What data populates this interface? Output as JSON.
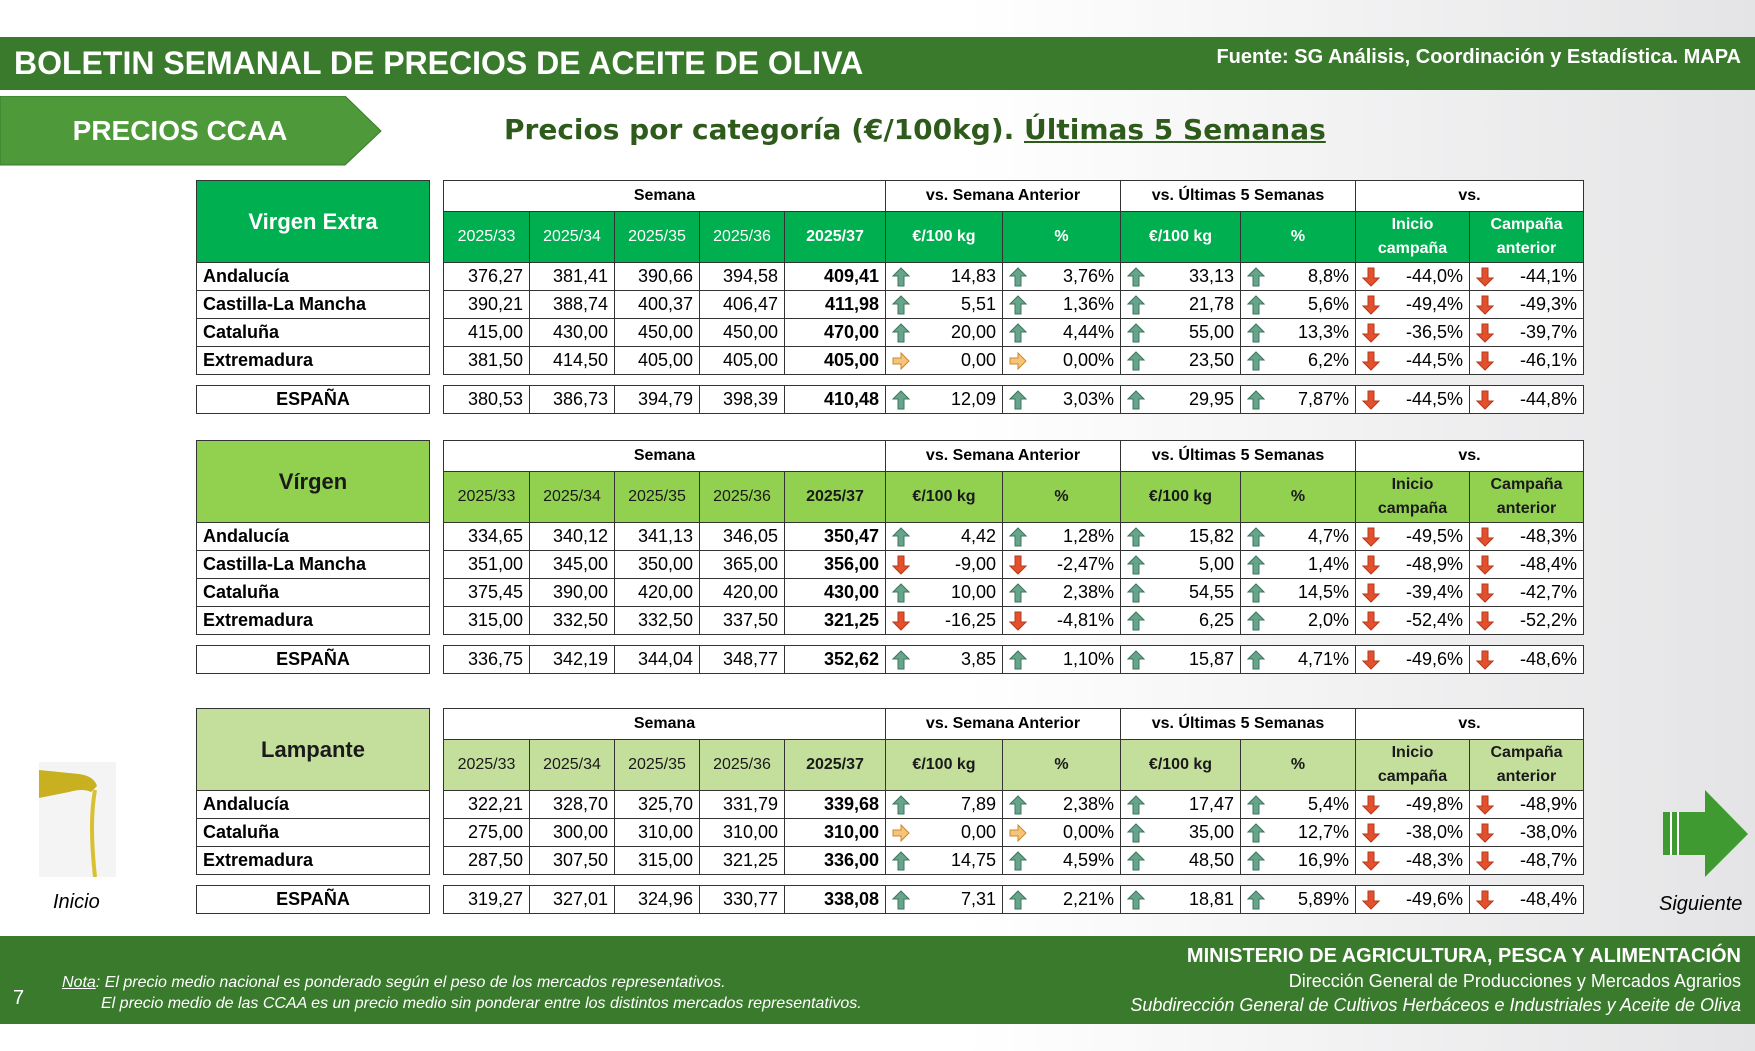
{
  "header": {
    "title": "BOLETIN SEMANAL DE PRECIOS DE ACEITE DE OLIVA",
    "source": "Fuente: SG Análisis, Coordinación y Estadística. MAPA"
  },
  "section": "PRECIOS CCAA",
  "subtitle": {
    "text": "Precios por categoría (€/100kg).",
    "underlined": "Últimas 5 Semanas"
  },
  "columns": {
    "groups": [
      "Semana",
      "vs. Semana Anterior",
      "vs. Últimas 5 Semanas",
      "vs."
    ],
    "weeks": [
      "2025/33",
      "2025/34",
      "2025/35",
      "2025/36",
      "2025/37"
    ],
    "subs": [
      "€/100 kg",
      "%",
      "€/100 kg",
      "%",
      "Inicio campaña",
      "Campaña anterior"
    ]
  },
  "tables": [
    {
      "name": "Virgen Extra",
      "header_color": "#00b050",
      "header_text_color": "#ffffff",
      "rows": [
        [
          "Andalucía",
          "376,27",
          "381,41",
          "390,66",
          "394,58",
          "409,41",
          "14,83",
          "3,76%",
          "33,13",
          "8,8%",
          "-44,0%",
          "-44,1%"
        ],
        [
          "Castilla-La Mancha",
          "390,21",
          "388,74",
          "400,37",
          "406,47",
          "411,98",
          "5,51",
          "1,36%",
          "21,78",
          "5,6%",
          "-49,4%",
          "-49,3%"
        ],
        [
          "Cataluña",
          "415,00",
          "430,00",
          "450,00",
          "450,00",
          "470,00",
          "20,00",
          "4,44%",
          "55,00",
          "13,3%",
          "-36,5%",
          "-39,7%"
        ],
        [
          "Extremadura",
          "381,50",
          "414,50",
          "405,00",
          "405,00",
          "405,00",
          "0,00",
          "0,00%",
          "23,50",
          "6,2%",
          "-44,5%",
          "-46,1%"
        ]
      ],
      "total": [
        "ESPAÑA",
        "380,53",
        "386,73",
        "394,79",
        "398,39",
        "410,48",
        "12,09",
        "3,03%",
        "29,95",
        "7,87%",
        "-44,5%",
        "-44,8%"
      ]
    },
    {
      "name": "Vírgen",
      "header_color": "#92d050",
      "header_text_color": "#1a1a1a",
      "rows": [
        [
          "Andalucía",
          "334,65",
          "340,12",
          "341,13",
          "346,05",
          "350,47",
          "4,42",
          "1,28%",
          "15,82",
          "4,7%",
          "-49,5%",
          "-48,3%"
        ],
        [
          "Castilla-La Mancha",
          "351,00",
          "345,00",
          "350,00",
          "365,00",
          "356,00",
          "-9,00",
          "-2,47%",
          "5,00",
          "1,4%",
          "-48,9%",
          "-48,4%"
        ],
        [
          "Cataluña",
          "375,45",
          "390,00",
          "420,00",
          "420,00",
          "430,00",
          "10,00",
          "2,38%",
          "54,55",
          "14,5%",
          "-39,4%",
          "-42,7%"
        ],
        [
          "Extremadura",
          "315,00",
          "332,50",
          "332,50",
          "337,50",
          "321,25",
          "-16,25",
          "-4,81%",
          "6,25",
          "2,0%",
          "-52,4%",
          "-52,2%"
        ]
      ],
      "total": [
        "ESPAÑA",
        "336,75",
        "342,19",
        "344,04",
        "348,77",
        "352,62",
        "3,85",
        "1,10%",
        "15,87",
        "4,71%",
        "-49,6%",
        "-48,6%"
      ]
    },
    {
      "name": "Lampante",
      "header_color": "#c4de9c",
      "header_text_color": "#1a1a1a",
      "rows": [
        [
          "Andalucía",
          "322,21",
          "328,70",
          "325,70",
          "331,79",
          "339,68",
          "7,89",
          "2,38%",
          "17,47",
          "5,4%",
          "-49,8%",
          "-48,9%"
        ],
        [
          "Cataluña",
          "275,00",
          "300,00",
          "310,00",
          "310,00",
          "310,00",
          "0,00",
          "0,00%",
          "35,00",
          "12,7%",
          "-38,0%",
          "-38,0%"
        ],
        [
          "Extremadura",
          "287,50",
          "307,50",
          "315,00",
          "321,25",
          "336,00",
          "14,75",
          "4,59%",
          "48,50",
          "16,9%",
          "-48,3%",
          "-48,7%"
        ]
      ],
      "total": [
        "ESPAÑA",
        "319,27",
        "327,01",
        "324,96",
        "330,77",
        "338,08",
        "7,31",
        "2,21%",
        "18,81",
        "5,89%",
        "-49,6%",
        "-48,4%"
      ]
    }
  ],
  "nav": {
    "start": "Inicio",
    "next": "Siguiente"
  },
  "footer": {
    "page": "7",
    "note_label": "Nota",
    "note_1": ": El precio medio nacional es ponderado según el peso de los mercados representativos.",
    "note_2": "El precio medio de las CCAA es un precio medio sin ponderar entre los distintos mercados representativos.",
    "ministry": "MINISTERIO DE AGRICULTURA, PESCA Y ALIMENTACIÓN",
    "direction": "Dirección General de Producciones y Mercados Agrarios",
    "subdirection": "Subdirección General de Cultivos Herbáceos e Industriales y Aceite de Oliva"
  }
}
